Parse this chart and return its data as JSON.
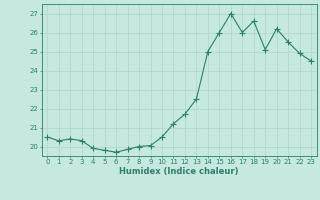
{
  "x": [
    0,
    1,
    2,
    3,
    4,
    5,
    6,
    7,
    8,
    9,
    10,
    11,
    12,
    13,
    14,
    15,
    16,
    17,
    18,
    19,
    20,
    21,
    22,
    23
  ],
  "y": [
    20.5,
    20.3,
    20.4,
    20.3,
    19.9,
    19.8,
    19.7,
    19.85,
    20.0,
    20.05,
    20.5,
    21.2,
    21.7,
    22.5,
    25.0,
    26.0,
    27.0,
    26.0,
    26.6,
    25.1,
    26.2,
    25.5,
    24.9,
    24.5
  ],
  "line_color": "#2e7d6e",
  "marker": "+",
  "marker_size": 4,
  "bg_color": "#c5e8e0",
  "grid_color": "#b0d5cc",
  "xlabel": "Humidex (Indice chaleur)",
  "ylim": [
    19.5,
    27.5
  ],
  "yticks": [
    20,
    21,
    22,
    23,
    24,
    25,
    26,
    27
  ],
  "xticks": [
    0,
    1,
    2,
    3,
    4,
    5,
    6,
    7,
    8,
    9,
    10,
    11,
    12,
    13,
    14,
    15,
    16,
    17,
    18,
    19,
    20,
    21,
    22,
    23
  ],
  "xlabel_fontsize": 6.0,
  "tick_fontsize": 5.0,
  "lw": 0.8
}
